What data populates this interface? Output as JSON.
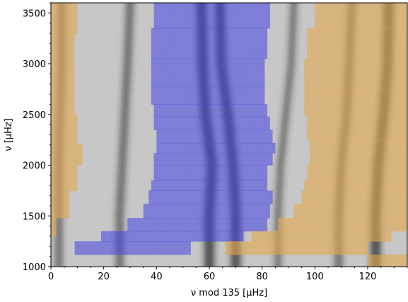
{
  "chart_data": {
    "type": "heatmap",
    "title": "",
    "xlabel": "ν mod 135 [μHz]",
    "ylabel": "ν [μHz]",
    "xlim": [
      0,
      135
    ],
    "ylim": [
      1000,
      3600
    ],
    "xticks": [
      0,
      20,
      40,
      60,
      80,
      100,
      120
    ],
    "yticks": [
      1000,
      1500,
      2000,
      2500,
      3000,
      3500
    ],
    "colormap": "grayscale échelle intensity",
    "ridges": [
      {
        "x": [
          30,
          29,
          28,
          27,
          26
        ],
        "y": [
          3600,
          3000,
          2500,
          2000,
          1500
        ],
        "strength": 0.55
      },
      {
        "x": [
          57,
          57.5,
          58.5,
          61,
          60
        ],
        "y": [
          3600,
          3000,
          2500,
          2000,
          1500
        ],
        "strength": 1.0
      },
      {
        "x": [
          64,
          64.5,
          67,
          69,
          70
        ],
        "y": [
          3600,
          3000,
          2500,
          2000,
          1500
        ],
        "strength": 0.95
      },
      {
        "x": [
          92,
          91,
          89,
          87,
          86
        ],
        "y": [
          3600,
          3000,
          2500,
          2000,
          1500
        ],
        "strength": 0.4
      },
      {
        "x": [
          114,
          113,
          112,
          110,
          109
        ],
        "y": [
          3600,
          3000,
          2500,
          2000,
          1500
        ],
        "strength": 0.55
      },
      {
        "x": [
          128,
          127.5,
          126,
          124,
          123
        ],
        "y": [
          3600,
          3000,
          2500,
          2000,
          1500
        ],
        "strength": 1.0
      },
      {
        "x": [
          4,
          4,
          3.5,
          3,
          3
        ],
        "y": [
          3600,
          3000,
          2500,
          2000,
          1500
        ],
        "strength": 0.5
      }
    ],
    "regions": [
      {
        "color": "#4444e6",
        "opacity": 0.55,
        "steps": [
          {
            "y0": 1000,
            "y1": 1120,
            "x0": 0,
            "x1": 0
          },
          {
            "y0": 1120,
            "y1": 1250,
            "x0": 9,
            "x1": 53
          },
          {
            "y0": 1250,
            "y1": 1350,
            "x0": 19,
            "x1": 73
          },
          {
            "y0": 1350,
            "y1": 1480,
            "x0": 29,
            "x1": 82
          },
          {
            "y0": 1480,
            "y1": 1620,
            "x0": 35,
            "x1": 83
          },
          {
            "y0": 1620,
            "y1": 1750,
            "x0": 37,
            "x1": 84
          },
          {
            "y0": 1750,
            "y1": 1850,
            "x0": 38,
            "x1": 82
          },
          {
            "y0": 1850,
            "y1": 2000,
            "x0": 39,
            "x1": 82
          },
          {
            "y0": 2000,
            "y1": 2120,
            "x0": 39,
            "x1": 84
          },
          {
            "y0": 2120,
            "y1": 2220,
            "x0": 40,
            "x1": 85
          },
          {
            "y0": 2220,
            "y1": 2350,
            "x0": 40,
            "x1": 84
          },
          {
            "y0": 2350,
            "y1": 2480,
            "x0": 39,
            "x1": 83
          },
          {
            "y0": 2480,
            "y1": 2600,
            "x0": 39,
            "x1": 82
          },
          {
            "y0": 2600,
            "y1": 2780,
            "x0": 38,
            "x1": 81
          },
          {
            "y0": 2780,
            "y1": 3050,
            "x0": 38,
            "x1": 81
          },
          {
            "y0": 3050,
            "y1": 3350,
            "x0": 38,
            "x1": 82
          },
          {
            "y0": 3350,
            "y1": 3600,
            "x0": 39,
            "x1": 83
          }
        ]
      },
      {
        "color": "#e3a84e",
        "opacity": 0.6,
        "steps": [
          {
            "y0": 1000,
            "y1": 1120,
            "x0": 120,
            "x1": 135
          },
          {
            "y0": 1120,
            "y1": 1250,
            "x0": 66,
            "x1": 120
          },
          {
            "y0": 1250,
            "y1": 1350,
            "x0": 76,
            "x1": 129
          },
          {
            "y0": 1350,
            "y1": 1480,
            "x0": 86,
            "x1": 135
          },
          {
            "y0": 1480,
            "y1": 1620,
            "x0": 92,
            "x1": 135
          },
          {
            "y0": 1620,
            "y1": 1750,
            "x0": 95,
            "x1": 135
          },
          {
            "y0": 1750,
            "y1": 1850,
            "x0": 96,
            "x1": 135
          },
          {
            "y0": 1850,
            "y1": 2000,
            "x0": 97,
            "x1": 135
          },
          {
            "y0": 2000,
            "y1": 2250,
            "x0": 98,
            "x1": 135
          },
          {
            "y0": 2250,
            "y1": 2500,
            "x0": 97,
            "x1": 135
          },
          {
            "y0": 2500,
            "y1": 2750,
            "x0": 96,
            "x1": 135
          },
          {
            "y0": 2750,
            "y1": 3050,
            "x0": 96,
            "x1": 135
          },
          {
            "y0": 3050,
            "y1": 3350,
            "x0": 97,
            "x1": 135
          },
          {
            "y0": 3350,
            "y1": 3600,
            "x0": 100,
            "x1": 135
          }
        ]
      },
      {
        "color": "#e3a84e",
        "opacity": 0.6,
        "steps": [
          {
            "y0": 1300,
            "y1": 1480,
            "x0": 0,
            "x1": 2
          },
          {
            "y0": 1480,
            "y1": 1750,
            "x0": 0,
            "x1": 7
          },
          {
            "y0": 1750,
            "y1": 2000,
            "x0": 0,
            "x1": 10
          },
          {
            "y0": 2000,
            "y1": 2200,
            "x0": 0,
            "x1": 12
          },
          {
            "y0": 2200,
            "y1": 2500,
            "x0": 0,
            "x1": 10
          },
          {
            "y0": 2500,
            "y1": 2900,
            "x0": 0,
            "x1": 9
          },
          {
            "y0": 2900,
            "y1": 3300,
            "x0": 0,
            "x1": 9
          },
          {
            "y0": 3300,
            "y1": 3600,
            "x0": 0,
            "x1": 10
          }
        ]
      }
    ]
  }
}
